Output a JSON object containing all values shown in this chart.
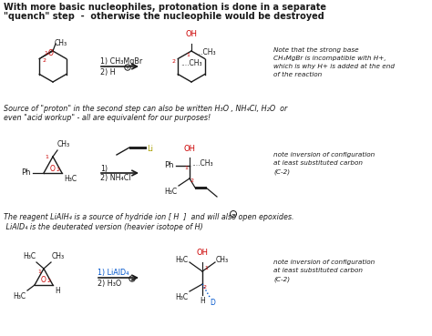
{
  "bg_color": "#ffffff",
  "black": "#1a1a1a",
  "red": "#cc0000",
  "blue": "#0055cc",
  "gray": "#555555",
  "green": "#888800",
  "header1": "With more basic nucleophiles, protonation is done in a separate",
  "header2": "\"quench\" step  -  otherwise the nucleophile would be destroyed",
  "note1_line1": "Note that the strong base",
  "note1_line2": "CH₃MgBr is incompatible with H+,",
  "note1_line3": "which is why H+ is added at the end",
  "note1_line4": "of the reaction",
  "italic1": "Source of \"proton\" in the second step can also be written H₃O , NH₄Cl, H₂O  or",
  "italic2": "even \"acid workup\" - all are equivalent for our purposes!",
  "note2_line1": "note inversion of configuration",
  "note2_line2": "at least substituted carbon",
  "note2_line3": "(C-2)",
  "note3_line1": "note inversion of configuration",
  "note3_line2": "at least substituted carbon",
  "note3_line3": "(C-2)",
  "liald_line1": "The reagent LiAlH₄ is a source of hydride ion [ H  ]  and will also open epoxides.",
  "liald_line2": " LiAlD₄ is the deuterated version (heavier isotope of H)"
}
